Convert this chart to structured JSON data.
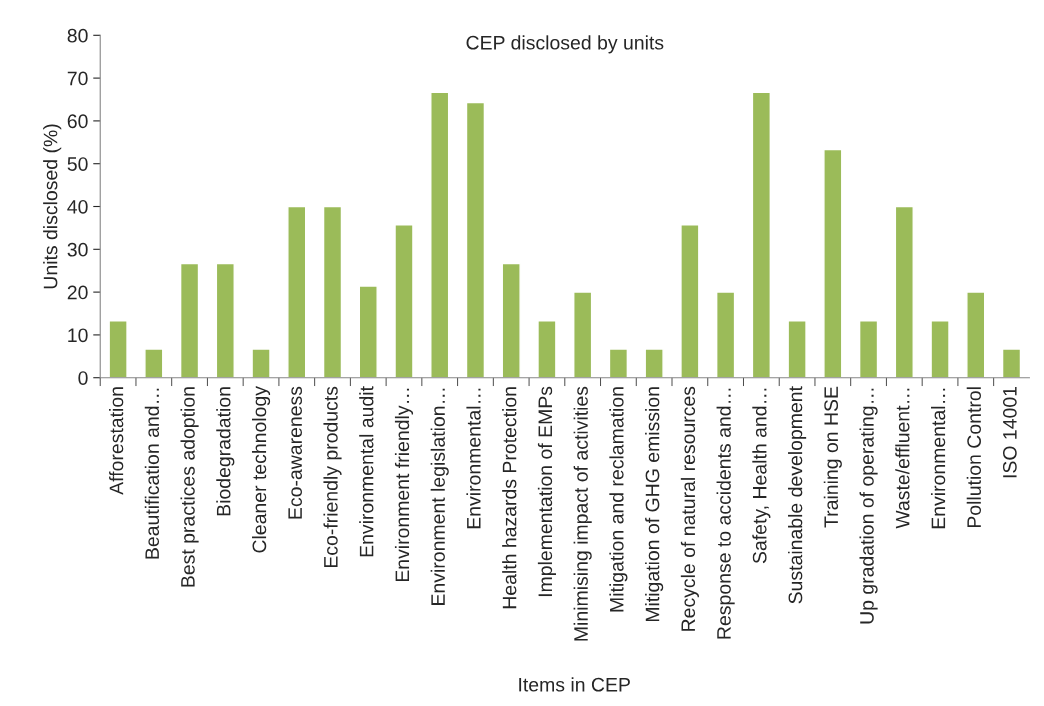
{
  "chart_data": {
    "type": "bar",
    "title": "CEP disclosed by units",
    "xlabel": "Items in CEP",
    "ylabel": "Units disclosed (%)",
    "categories": [
      "Afforestation",
      "Beautification and…",
      "Best practices adoption",
      "Biodegradation",
      "Cleaner technology",
      "Eco-awareness",
      "Eco-friendly products",
      "Environmental audit",
      "Environment friendly…",
      "Environment legislation…",
      "Environmental…",
      "Health hazards Protection",
      "Implementation of EMPs",
      "Minimising impact of activities",
      "Mitigation and reclamation",
      "Mitigation of GHG emission",
      "Recycle of natural resources",
      "Response to accidents and…",
      "Safety, Health and…",
      "Sustainable development",
      "Training on HSE",
      "Up gradation of operating…",
      "Waste/effluent…",
      "Environmental…",
      "Pollution Control",
      "ISO 14001"
    ],
    "values": [
      13.3,
      6.7,
      26.7,
      26.7,
      6.7,
      40,
      40,
      21.4,
      35.7,
      66.7,
      64.3,
      26.7,
      13.3,
      20,
      6.7,
      6.7,
      35.7,
      20,
      66.7,
      13.3,
      53.3,
      13.3,
      40,
      13.3,
      20,
      6.7
    ],
    "color": "#9bbb59",
    "ylim": [
      0,
      80
    ],
    "yticks": [
      0,
      10,
      20,
      30,
      40,
      50,
      60,
      70,
      80
    ],
    "grid": false,
    "legend": false
  }
}
